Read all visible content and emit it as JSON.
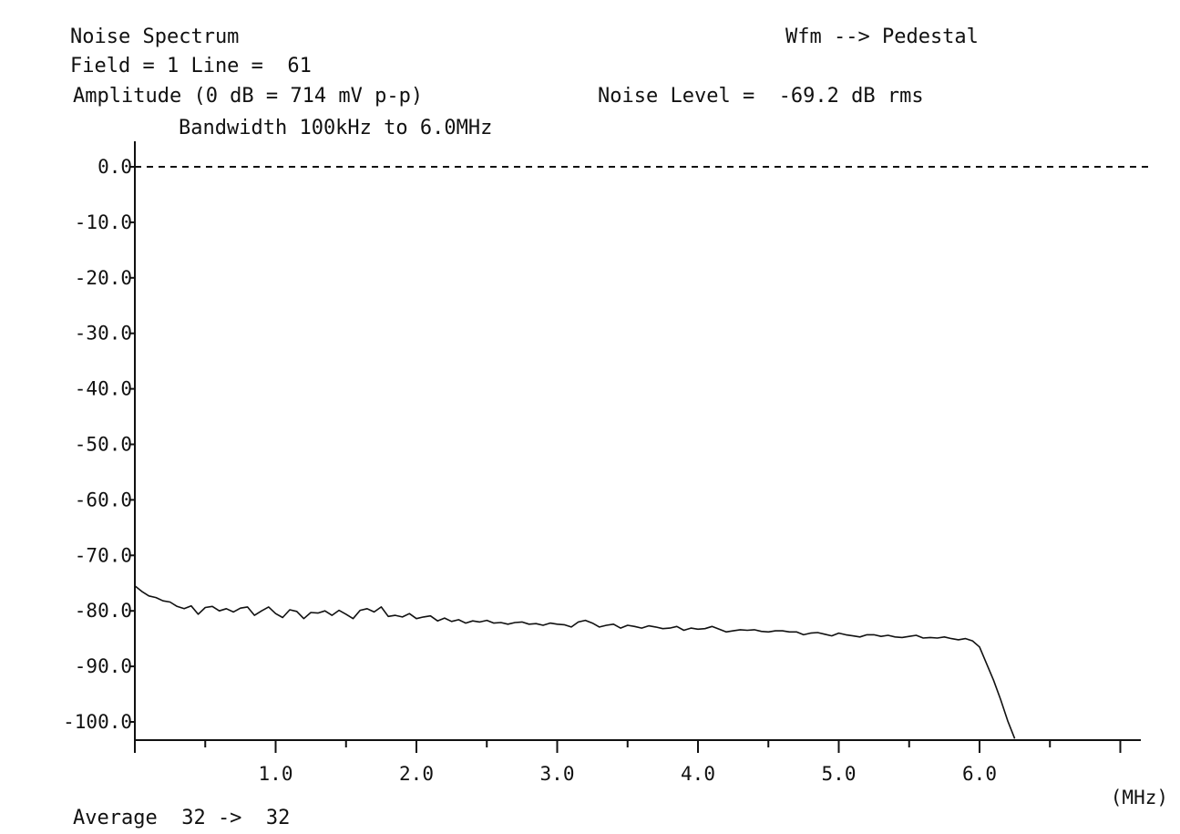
{
  "header": {
    "title": "Noise Spectrum",
    "field_line": "Field = 1 Line =  61",
    "amplitude_ref": "Amplitude (0 dB = 714 mV p-p)",
    "noise_level": "Noise Level =  -69.2 dB rms",
    "bandwidth": "Bandwidth 100kHz to 6.0MHz",
    "waveform": "Wfm --> Pedestal"
  },
  "footer": {
    "average": "Average  32 ->  32"
  },
  "chart_data": {
    "type": "line",
    "xlabel": "(MHz)",
    "ylabel": "",
    "xlim": [
      0,
      7.0
    ],
    "ylim": [
      -103,
      5
    ],
    "x_ticks": [
      1.0,
      2.0,
      3.0,
      4.0,
      5.0,
      6.0
    ],
    "x_tick_labels": [
      "1.0",
      "2.0",
      "3.0",
      "4.0",
      "5.0",
      "6.0"
    ],
    "y_ticks": [
      0,
      -10,
      -20,
      -30,
      -40,
      -50,
      -60,
      -70,
      -80,
      -90,
      -100
    ],
    "y_tick_labels": [
      "0.0",
      "-10.0",
      "-20.0",
      "-30.0",
      "-40.0",
      "-50.0",
      "-60.0",
      "-70.0",
      "-80.0",
      "-90.0",
      "-100.0"
    ],
    "reference_line": {
      "y": 0,
      "style": "dashed"
    },
    "grid": false,
    "series": [
      {
        "x": [
          0.0,
          0.05,
          0.1,
          0.15,
          0.2,
          0.25,
          0.3,
          0.35,
          0.4,
          0.45,
          0.5,
          0.55,
          0.6,
          0.65,
          0.7,
          0.75,
          0.8,
          0.85,
          0.9,
          0.95,
          1.0,
          1.05,
          1.1,
          1.15,
          1.2,
          1.25,
          1.3,
          1.35,
          1.4,
          1.45,
          1.5,
          1.55,
          1.6,
          1.65,
          1.7,
          1.75,
          1.8,
          1.85,
          1.9,
          1.95,
          2.0,
          2.05,
          2.1,
          2.15,
          2.2,
          2.25,
          2.3,
          2.35,
          2.4,
          2.45,
          2.5,
          2.55,
          2.6,
          2.65,
          2.7,
          2.75,
          2.8,
          2.85,
          2.9,
          2.95,
          3.0,
          3.05,
          3.1,
          3.15,
          3.2,
          3.25,
          3.3,
          3.35,
          3.4,
          3.45,
          3.5,
          3.55,
          3.6,
          3.65,
          3.7,
          3.75,
          3.8,
          3.85,
          3.9,
          3.95,
          4.0,
          4.05,
          4.1,
          4.15,
          4.2,
          4.25,
          4.3,
          4.35,
          4.4,
          4.45,
          4.5,
          4.55,
          4.6,
          4.65,
          4.7,
          4.75,
          4.8,
          4.85,
          4.9,
          4.95,
          5.0,
          5.05,
          5.1,
          5.15,
          5.2,
          5.25,
          5.3,
          5.35,
          5.4,
          5.45,
          5.5,
          5.55,
          5.6,
          5.65,
          5.7,
          5.75,
          5.8,
          5.85,
          5.9,
          5.95,
          6.0,
          6.05,
          6.1,
          6.15,
          6.2,
          6.25
        ],
        "y": [
          -75.5,
          -76.5,
          -77.3,
          -77.6,
          -78.2,
          -78.4,
          -79.2,
          -79.6,
          -79.1,
          -80.6,
          -79.4,
          -79.2,
          -80.0,
          -79.6,
          -80.2,
          -79.5,
          -79.3,
          -80.8,
          -80.0,
          -79.3,
          -80.5,
          -81.2,
          -79.8,
          -80.1,
          -81.4,
          -80.3,
          -80.4,
          -80.0,
          -80.8,
          -79.9,
          -80.6,
          -81.4,
          -79.9,
          -79.6,
          -80.2,
          -79.3,
          -81.0,
          -80.8,
          -81.1,
          -80.5,
          -81.4,
          -81.1,
          -80.9,
          -81.8,
          -81.3,
          -81.9,
          -81.6,
          -82.2,
          -81.8,
          -82.0,
          -81.7,
          -82.2,
          -82.1,
          -82.4,
          -82.1,
          -82.0,
          -82.4,
          -82.3,
          -82.6,
          -82.2,
          -82.4,
          -82.5,
          -82.9,
          -82.0,
          -81.7,
          -82.2,
          -82.9,
          -82.6,
          -82.4,
          -83.1,
          -82.6,
          -82.8,
          -83.1,
          -82.7,
          -82.9,
          -83.2,
          -83.1,
          -82.8,
          -83.5,
          -83.1,
          -83.3,
          -83.2,
          -82.8,
          -83.3,
          -83.8,
          -83.6,
          -83.4,
          -83.5,
          -83.4,
          -83.7,
          -83.8,
          -83.6,
          -83.6,
          -83.8,
          -83.8,
          -84.3,
          -84.0,
          -83.9,
          -84.2,
          -84.5,
          -84.0,
          -84.3,
          -84.5,
          -84.7,
          -84.3,
          -84.3,
          -84.6,
          -84.4,
          -84.7,
          -84.8,
          -84.6,
          -84.4,
          -84.9,
          -84.8,
          -84.9,
          -84.7,
          -85.0,
          -85.2,
          -85.0,
          -85.4,
          -86.5,
          -89.5,
          -92.5,
          -96.0,
          -99.8,
          -103.0
        ]
      }
    ]
  }
}
